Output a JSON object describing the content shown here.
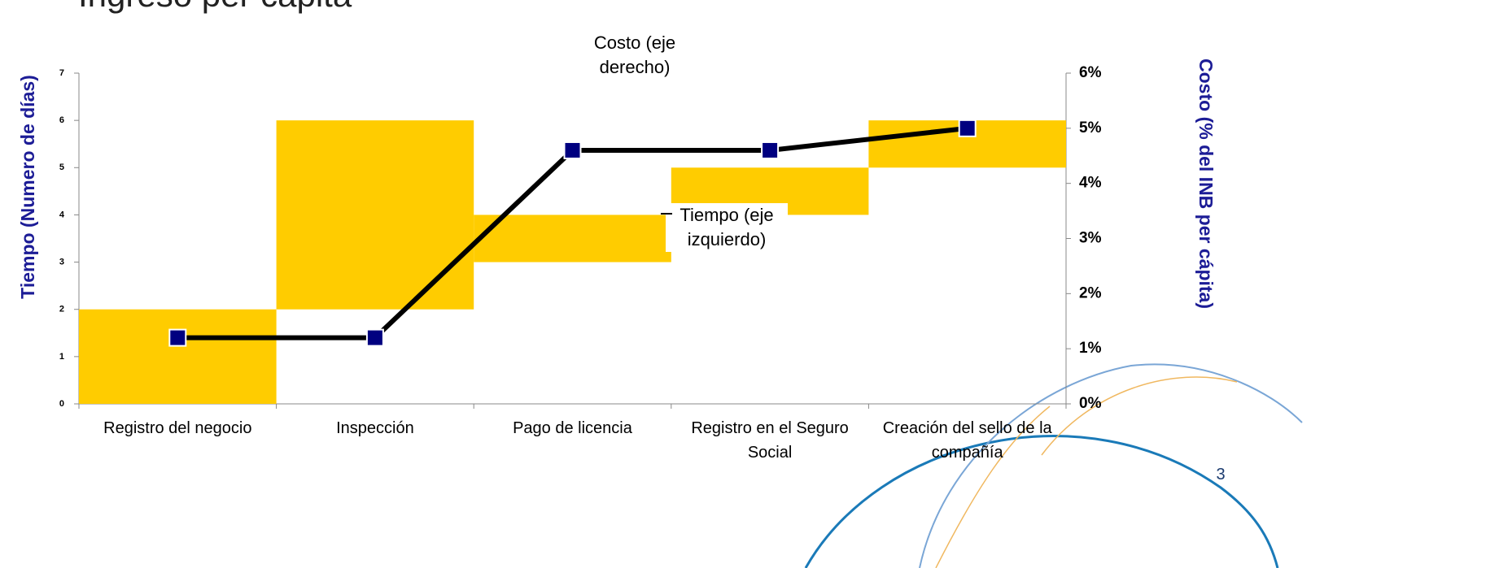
{
  "title": "Ingreso per cápita",
  "page_number": "3",
  "chart_data": {
    "type": "floating-bar-line",
    "y_label": "Tiempo (Numero de días)",
    "y2_label": "Costo (% del INB per cápita)",
    "categories": [
      "Registro del negocio",
      "Inspección",
      "Pago de licencia",
      "Registro en el Seguro Social",
      "Creación del sello de la compañía"
    ],
    "series": [
      {
        "name": "Tiempo (eje izquierdo)",
        "type": "bar",
        "color": "#ffcc00",
        "starts": [
          0,
          2,
          3,
          4,
          5
        ],
        "values": [
          2,
          4,
          1,
          1,
          1
        ]
      },
      {
        "name": "Costo (eje derecho)",
        "type": "line",
        "axis": "y2",
        "color": "#000000",
        "marker_color": "#000080",
        "values": [
          1.2,
          1.2,
          4.6,
          4.6,
          5.0
        ]
      }
    ],
    "ylim": [
      0,
      7
    ],
    "yticks": [
      0,
      1,
      2,
      3,
      4,
      5,
      6,
      7
    ],
    "y2lim": [
      0,
      6
    ],
    "y2ticks": [
      {
        "value": 0,
        "label": "0%"
      },
      {
        "value": 1,
        "label": "1%"
      },
      {
        "value": 2,
        "label": "2%"
      },
      {
        "value": 3,
        "label": "3%"
      },
      {
        "value": 4,
        "label": "4%"
      },
      {
        "value": 5,
        "label": "5%"
      },
      {
        "value": 6,
        "label": "6%"
      }
    ]
  }
}
